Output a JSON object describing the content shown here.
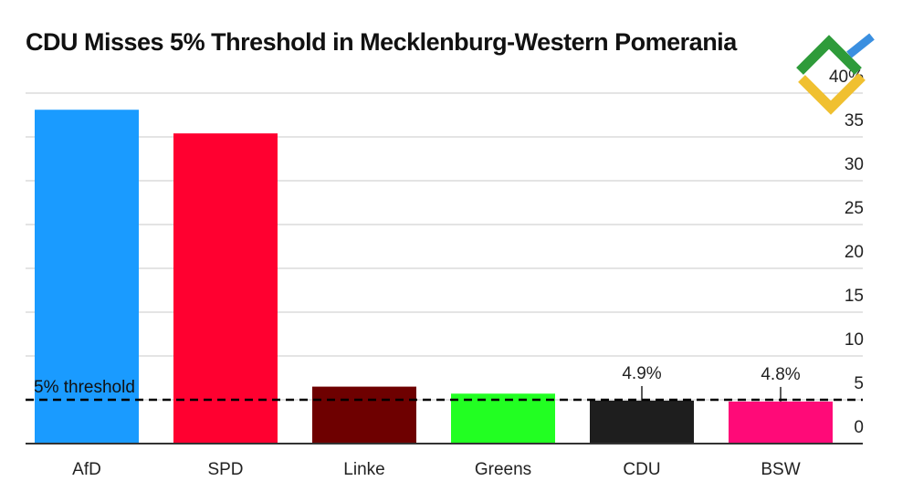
{
  "chart_data": {
    "type": "bar",
    "title": "CDU Misses 5% Threshold in Mecklenburg-Western Pomerania",
    "categories": [
      "AfD",
      "SPD",
      "Linke",
      "Greens",
      "CDU",
      "BSW"
    ],
    "values": [
      38.1,
      35.4,
      6.5,
      5.7,
      4.9,
      4.8
    ],
    "value_labels": [
      null,
      null,
      null,
      null,
      "4.9%",
      "4.8%"
    ],
    "colors": [
      "#1a9bff",
      "#ff0030",
      "#6e0000",
      "#22ff22",
      "#1e1e1e",
      "#ff0a78"
    ],
    "ylim": [
      0,
      40
    ],
    "yticks": [
      0,
      5,
      10,
      15,
      20,
      25,
      30,
      35,
      {
        "value": 40,
        "label": "40%"
      }
    ],
    "grid": true,
    "threshold": {
      "value": 5,
      "label": "5% threshold"
    }
  }
}
